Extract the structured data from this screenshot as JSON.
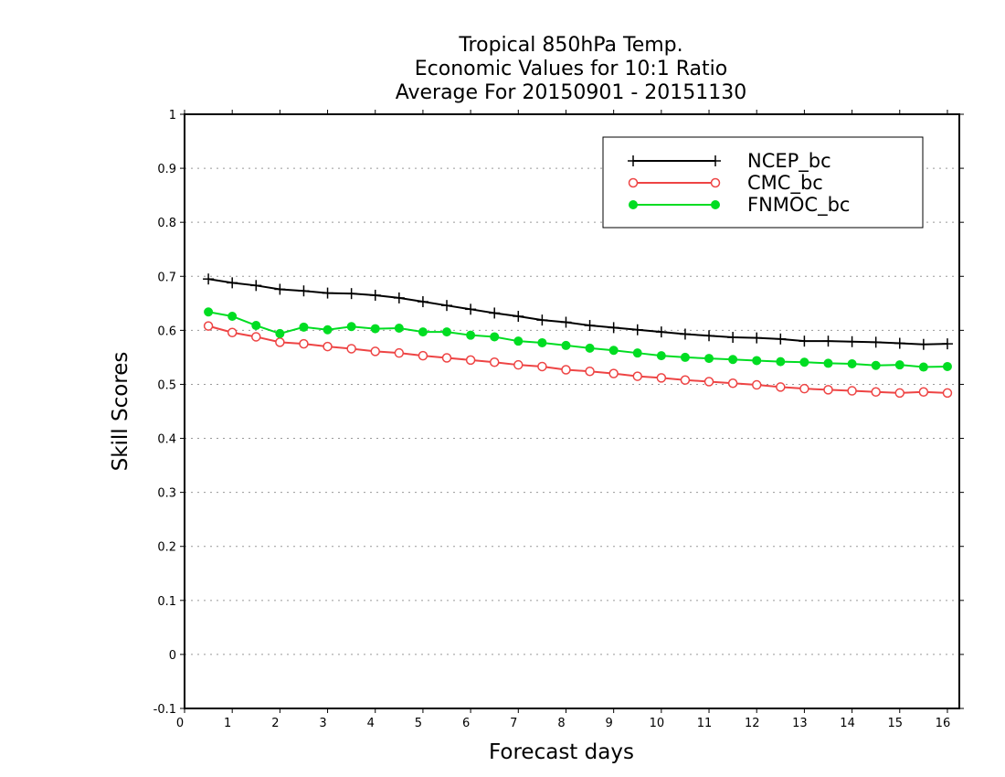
{
  "chart_data": {
    "type": "line",
    "title_lines": [
      "Tropical 850hPa Temp.",
      "Economic Values for 10:1 Ratio",
      "Average For 20150901 - 20151130"
    ],
    "xlabel": "Forecast days",
    "ylabel": "Skill Scores",
    "xlim": [
      0,
      16.25
    ],
    "ylim": [
      -0.1,
      1
    ],
    "x_ticks": [
      0,
      1,
      2,
      3,
      4,
      5,
      6,
      7,
      8,
      9,
      10,
      11,
      12,
      13,
      14,
      15,
      16
    ],
    "y_ticks": [
      -0.1,
      0,
      0.1,
      0.2,
      0.3,
      0.4,
      0.5,
      0.6,
      0.7,
      0.8,
      0.9,
      1
    ],
    "y_tick_labels": [
      "-0.1",
      "0",
      "0.1",
      "0.2",
      "0.3",
      "0.4",
      "0.5",
      "0.6",
      "0.7",
      "0.8",
      "0.9",
      "1"
    ],
    "grid": "horizontal dotted",
    "legend_position": "top-right",
    "x": [
      0.5,
      1,
      1.5,
      2,
      2.5,
      3,
      3.5,
      4,
      4.5,
      5,
      5.5,
      6,
      6.5,
      7,
      7.5,
      8,
      8.5,
      9,
      9.5,
      10,
      10.5,
      11,
      11.5,
      12,
      12.5,
      13,
      13.5,
      14,
      14.5,
      15,
      15.5,
      16
    ],
    "series": [
      {
        "name": "NCEP_bc",
        "color": "#000000",
        "marker": "plus",
        "values": [
          0.695,
          0.688,
          0.683,
          0.676,
          0.673,
          0.669,
          0.668,
          0.665,
          0.66,
          0.653,
          0.646,
          0.639,
          0.632,
          0.626,
          0.619,
          0.615,
          0.609,
          0.605,
          0.601,
          0.597,
          0.593,
          0.59,
          0.587,
          0.586,
          0.584,
          0.58,
          0.58,
          0.579,
          0.578,
          0.576,
          0.574,
          0.575
        ]
      },
      {
        "name": "CMC_bc",
        "color": "#ee4444",
        "marker": "open-circle",
        "values": [
          0.608,
          0.596,
          0.588,
          0.578,
          0.575,
          0.57,
          0.566,
          0.561,
          0.558,
          0.553,
          0.549,
          0.545,
          0.541,
          0.536,
          0.533,
          0.527,
          0.524,
          0.52,
          0.515,
          0.512,
          0.508,
          0.505,
          0.502,
          0.499,
          0.495,
          0.492,
          0.49,
          0.488,
          0.486,
          0.484,
          0.486,
          0.484
        ]
      },
      {
        "name": "FNMOC_bc",
        "color": "#00dd22",
        "marker": "filled-circle",
        "values": [
          0.634,
          0.626,
          0.609,
          0.594,
          0.606,
          0.601,
          0.607,
          0.603,
          0.604,
          0.597,
          0.597,
          0.591,
          0.588,
          0.58,
          0.577,
          0.572,
          0.567,
          0.563,
          0.558,
          0.553,
          0.55,
          0.548,
          0.546,
          0.544,
          0.542,
          0.541,
          0.539,
          0.538,
          0.535,
          0.536,
          0.532,
          0.533
        ]
      }
    ]
  }
}
